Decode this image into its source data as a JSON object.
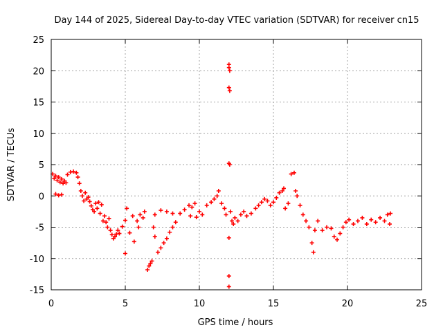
{
  "chart_data": {
    "type": "scatter",
    "title": "Day 144 of 2025, Sidereal Day-to-day VTEC variation (SDTVAR) for receiver cn15",
    "xlabel": "GPS time / hours",
    "ylabel": "SDTVAR / TECUs",
    "xlim": [
      0,
      25
    ],
    "ylim": [
      -15,
      25
    ],
    "xticks": [
      0,
      5,
      10,
      15,
      20,
      25
    ],
    "yticks": [
      -15,
      -10,
      -5,
      0,
      5,
      10,
      15,
      20,
      25
    ],
    "grid": true,
    "marker": "+",
    "color": "#ff0000",
    "series": [
      {
        "name": "SDTVAR",
        "points": [
          [
            0.1,
            3.5
          ],
          [
            0.2,
            2.8
          ],
          [
            0.3,
            3.2
          ],
          [
            0.4,
            2.5
          ],
          [
            0.5,
            3.0
          ],
          [
            0.6,
            2.2
          ],
          [
            0.7,
            2.7
          ],
          [
            0.8,
            2.0
          ],
          [
            0.9,
            2.4
          ],
          [
            1.0,
            2.1
          ],
          [
            0.3,
            0.3
          ],
          [
            0.5,
            0.1
          ],
          [
            0.7,
            0.2
          ],
          [
            1.1,
            3.4
          ],
          [
            1.3,
            3.8
          ],
          [
            1.5,
            3.9
          ],
          [
            1.7,
            3.7
          ],
          [
            1.8,
            3.0
          ],
          [
            1.9,
            2.0
          ],
          [
            2.0,
            0.8
          ],
          [
            2.1,
            0.0
          ],
          [
            2.2,
            -0.8
          ],
          [
            2.3,
            0.5
          ],
          [
            2.4,
            -0.5
          ],
          [
            2.5,
            -0.2
          ],
          [
            2.6,
            -0.9
          ],
          [
            2.7,
            -1.6
          ],
          [
            2.8,
            -2.2
          ],
          [
            2.9,
            -2.5
          ],
          [
            3.0,
            -1.2
          ],
          [
            3.1,
            -2.0
          ],
          [
            3.2,
            -1.0
          ],
          [
            3.3,
            -2.8
          ],
          [
            3.4,
            -1.4
          ],
          [
            3.5,
            -4.0
          ],
          [
            3.6,
            -3.2
          ],
          [
            3.7,
            -4.2
          ],
          [
            3.8,
            -5.0
          ],
          [
            3.9,
            -3.6
          ],
          [
            4.0,
            -5.5
          ],
          [
            4.1,
            -6.2
          ],
          [
            4.2,
            -6.8
          ],
          [
            4.3,
            -6.5
          ],
          [
            4.4,
            -6.1
          ],
          [
            4.5,
            -5.5
          ],
          [
            4.6,
            -6.0
          ],
          [
            4.8,
            -4.9
          ],
          [
            5.0,
            -9.2
          ],
          [
            5.0,
            -3.9
          ],
          [
            5.1,
            -2.0
          ],
          [
            5.3,
            -5.9
          ],
          [
            5.5,
            -3.2
          ],
          [
            5.6,
            -7.3
          ],
          [
            5.8,
            -4.0
          ],
          [
            5.9,
            -5.0
          ],
          [
            6.0,
            -3.0
          ],
          [
            6.2,
            -3.5
          ],
          [
            6.3,
            -2.5
          ],
          [
            6.5,
            -11.8
          ],
          [
            6.6,
            -11.2
          ],
          [
            6.7,
            -10.8
          ],
          [
            6.8,
            -10.4
          ],
          [
            6.9,
            -5.0
          ],
          [
            7.0,
            -6.5
          ],
          [
            7.0,
            -3.0
          ],
          [
            7.2,
            -9.0
          ],
          [
            7.4,
            -8.3
          ],
          [
            7.6,
            -7.5
          ],
          [
            7.8,
            -6.8
          ],
          [
            8.0,
            -5.8
          ],
          [
            8.2,
            -5.0
          ],
          [
            8.4,
            -4.2
          ],
          [
            7.4,
            -2.3
          ],
          [
            7.8,
            -2.5
          ],
          [
            8.2,
            -2.8
          ],
          [
            8.7,
            -2.8
          ],
          [
            9.0,
            -2.2
          ],
          [
            9.3,
            -1.5
          ],
          [
            9.5,
            -1.8
          ],
          [
            9.7,
            -1.2
          ],
          [
            10.0,
            -2.5
          ],
          [
            9.4,
            -3.2
          ],
          [
            9.8,
            -3.4
          ],
          [
            10.2,
            -3.0
          ],
          [
            10.5,
            -1.5
          ],
          [
            10.8,
            -1.0
          ],
          [
            11.0,
            -0.5
          ],
          [
            11.2,
            0.0
          ],
          [
            11.3,
            0.8
          ],
          [
            11.5,
            -1.2
          ],
          [
            11.7,
            -2.0
          ],
          [
            11.8,
            -3.0
          ],
          [
            12.0,
            21.0
          ],
          [
            12.0,
            20.5
          ],
          [
            12.05,
            20.0
          ],
          [
            12.0,
            17.3
          ],
          [
            12.05,
            16.8
          ],
          [
            12.0,
            5.2
          ],
          [
            12.05,
            5.0
          ],
          [
            12.0,
            -6.7
          ],
          [
            12.0,
            -12.8
          ],
          [
            12.0,
            -14.5
          ],
          [
            12.1,
            -2.5
          ],
          [
            12.2,
            -4.0
          ],
          [
            12.3,
            -4.5
          ],
          [
            12.4,
            -3.5
          ],
          [
            12.6,
            -4.0
          ],
          [
            12.8,
            -3.0
          ],
          [
            13.0,
            -2.5
          ],
          [
            13.2,
            -3.2
          ],
          [
            13.5,
            -2.8
          ],
          [
            13.8,
            -2.0
          ],
          [
            14.0,
            -1.5
          ],
          [
            14.2,
            -1.0
          ],
          [
            14.4,
            -0.5
          ],
          [
            14.6,
            -0.8
          ],
          [
            14.8,
            -1.5
          ],
          [
            15.0,
            -1.0
          ],
          [
            15.2,
            -0.3
          ],
          [
            15.4,
            0.5
          ],
          [
            15.6,
            0.8
          ],
          [
            15.7,
            1.2
          ],
          [
            15.8,
            -2.0
          ],
          [
            16.0,
            -1.2
          ],
          [
            16.2,
            3.5
          ],
          [
            16.4,
            3.7
          ],
          [
            16.5,
            0.8
          ],
          [
            16.6,
            0.0
          ],
          [
            16.8,
            -1.5
          ],
          [
            17.0,
            -3.0
          ],
          [
            17.2,
            -4.0
          ],
          [
            17.4,
            -5.0
          ],
          [
            17.6,
            -7.5
          ],
          [
            17.7,
            -9.0
          ],
          [
            17.8,
            -5.5
          ],
          [
            18.0,
            -4.0
          ],
          [
            18.3,
            -5.5
          ],
          [
            18.6,
            -5.0
          ],
          [
            18.9,
            -5.2
          ],
          [
            19.1,
            -6.5
          ],
          [
            19.3,
            -7.0
          ],
          [
            19.5,
            -6.0
          ],
          [
            19.7,
            -5.0
          ],
          [
            19.9,
            -4.2
          ],
          [
            20.1,
            -3.8
          ],
          [
            20.4,
            -4.5
          ],
          [
            20.7,
            -4.0
          ],
          [
            21.0,
            -3.5
          ],
          [
            21.3,
            -4.5
          ],
          [
            21.6,
            -3.8
          ],
          [
            21.9,
            -4.2
          ],
          [
            22.2,
            -3.5
          ],
          [
            22.5,
            -4.0
          ],
          [
            22.7,
            -3.0
          ],
          [
            22.85,
            -4.5
          ],
          [
            22.9,
            -2.8
          ]
        ]
      }
    ]
  }
}
